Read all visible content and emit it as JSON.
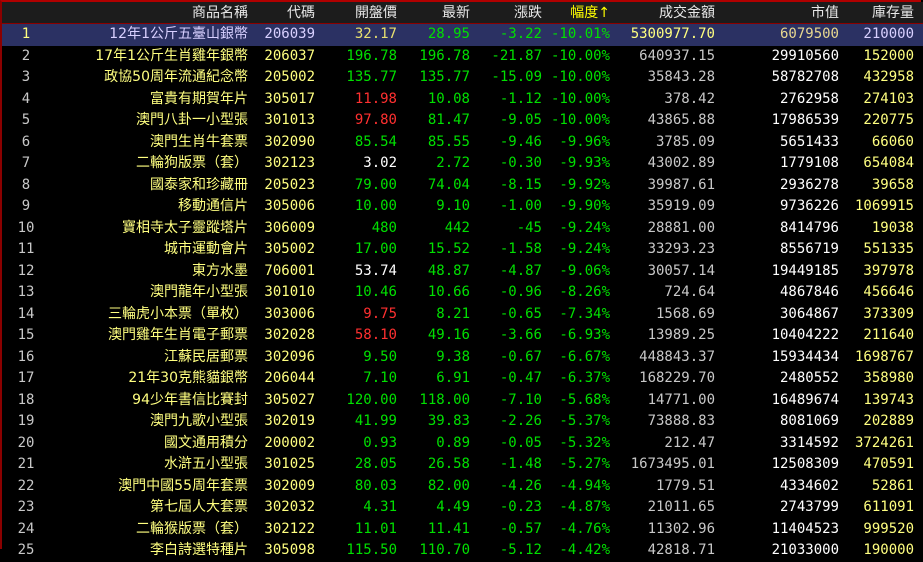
{
  "header": {
    "name": "商品名稱",
    "code": "代碼",
    "open": "開盤價",
    "last": "最新",
    "chg": "漲跌",
    "pct": "幅度",
    "sort_arrow": "↑",
    "amt": "成交金額",
    "cap": "市值",
    "stk": "庫存量"
  },
  "selected_row": 1,
  "colors": {
    "up": "#ff3030",
    "down": "#00e000",
    "flat": "#ffffff",
    "name": "#ffff80",
    "selected_bg": "#2b3163"
  },
  "rows": [
    {
      "n": "1",
      "name": "12年1公斤五臺山銀幣",
      "code": "206039",
      "open": "32.17",
      "oc": "g",
      "last": "28.95",
      "chg": "-3.22",
      "pct": "-10.01%",
      "amt": "5300977.70",
      "cap": "6079500",
      "stk": "210000"
    },
    {
      "n": "2",
      "name": "17年1公斤生肖雞年銀幣",
      "code": "206037",
      "open": "196.78",
      "oc": "g",
      "last": "196.78",
      "chg": "-21.87",
      "pct": "-10.00%",
      "amt": "640937.15",
      "cap": "29910560",
      "stk": "152000"
    },
    {
      "n": "3",
      "name": "政協50周年流通紀念幣",
      "code": "205002",
      "open": "135.77",
      "oc": "g",
      "last": "135.77",
      "chg": "-15.09",
      "pct": "-10.00%",
      "amt": "35843.28",
      "cap": "58782708",
      "stk": "432958"
    },
    {
      "n": "4",
      "name": "富貴有期賀年片",
      "code": "305017",
      "open": "11.98",
      "oc": "r",
      "last": "10.08",
      "chg": "-1.12",
      "pct": "-10.00%",
      "amt": "378.42",
      "cap": "2762958",
      "stk": "274103"
    },
    {
      "n": "5",
      "name": "澳門八卦一小型張",
      "code": "301013",
      "open": "97.80",
      "oc": "r",
      "last": "81.47",
      "chg": "-9.05",
      "pct": "-10.00%",
      "amt": "43865.88",
      "cap": "17986539",
      "stk": "220775"
    },
    {
      "n": "6",
      "name": "澳門生肖牛套票",
      "code": "302090",
      "open": "85.54",
      "oc": "g",
      "last": "85.55",
      "chg": "-9.46",
      "pct": "-9.96%",
      "amt": "3785.09",
      "cap": "5651433",
      "stk": "66060"
    },
    {
      "n": "7",
      "name": "二輪狗版票（套）",
      "code": "302123",
      "open": "3.02",
      "oc": "w",
      "last": "2.72",
      "chg": "-0.30",
      "pct": "-9.93%",
      "amt": "43002.89",
      "cap": "1779108",
      "stk": "654084"
    },
    {
      "n": "8",
      "name": "國泰家和珍藏冊",
      "code": "205023",
      "open": "79.00",
      "oc": "g",
      "last": "74.04",
      "chg": "-8.15",
      "pct": "-9.92%",
      "amt": "39987.61",
      "cap": "2936278",
      "stk": "39658"
    },
    {
      "n": "9",
      "name": "移動通信片",
      "code": "305006",
      "open": "10.00",
      "oc": "g",
      "last": "9.10",
      "chg": "-1.00",
      "pct": "-9.90%",
      "amt": "35919.09",
      "cap": "9736226",
      "stk": "1069915"
    },
    {
      "n": "10",
      "name": "寶相寺太子靈蹤塔片",
      "code": "306009",
      "open": "480",
      "oc": "g",
      "last": "442",
      "chg": "-45",
      "pct": "-9.24%",
      "amt": "28881.00",
      "cap": "8414796",
      "stk": "19038"
    },
    {
      "n": "11",
      "name": "城市運動會片",
      "code": "305002",
      "open": "17.00",
      "oc": "g",
      "last": "15.52",
      "chg": "-1.58",
      "pct": "-9.24%",
      "amt": "33293.23",
      "cap": "8556719",
      "stk": "551335"
    },
    {
      "n": "12",
      "name": "東方水墨",
      "code": "706001",
      "open": "53.74",
      "oc": "w",
      "last": "48.87",
      "chg": "-4.87",
      "pct": "-9.06%",
      "amt": "30057.14",
      "cap": "19449185",
      "stk": "397978"
    },
    {
      "n": "13",
      "name": "澳門龍年小型張",
      "code": "301010",
      "open": "10.46",
      "oc": "g",
      "last": "10.66",
      "chg": "-0.96",
      "pct": "-8.26%",
      "amt": "724.64",
      "cap": "4867846",
      "stk": "456646"
    },
    {
      "n": "14",
      "name": "三輪虎小本票（單枚）",
      "code": "303006",
      "open": "9.75",
      "oc": "r",
      "last": "8.21",
      "chg": "-0.65",
      "pct": "-7.34%",
      "amt": "1568.69",
      "cap": "3064867",
      "stk": "373309"
    },
    {
      "n": "15",
      "name": "澳門雞年生肖電子郵票",
      "code": "302028",
      "open": "58.10",
      "oc": "r",
      "last": "49.16",
      "chg": "-3.66",
      "pct": "-6.93%",
      "amt": "13989.25",
      "cap": "10404222",
      "stk": "211640"
    },
    {
      "n": "16",
      "name": "江蘇民居郵票",
      "code": "302096",
      "open": "9.50",
      "oc": "g",
      "last": "9.38",
      "chg": "-0.67",
      "pct": "-6.67%",
      "amt": "448843.37",
      "cap": "15934434",
      "stk": "1698767"
    },
    {
      "n": "17",
      "name": "21年30克熊貓銀幣",
      "code": "206044",
      "open": "7.10",
      "oc": "g",
      "last": "6.91",
      "chg": "-0.47",
      "pct": "-6.37%",
      "amt": "168229.70",
      "cap": "2480552",
      "stk": "358980"
    },
    {
      "n": "18",
      "name": "94少年書信比賽封",
      "code": "305027",
      "open": "120.00",
      "oc": "g",
      "last": "118.00",
      "chg": "-7.10",
      "pct": "-5.68%",
      "amt": "14771.00",
      "cap": "16489674",
      "stk": "139743"
    },
    {
      "n": "19",
      "name": "澳門九歌小型張",
      "code": "302019",
      "open": "41.99",
      "oc": "g",
      "last": "39.83",
      "chg": "-2.26",
      "pct": "-5.37%",
      "amt": "73888.83",
      "cap": "8081069",
      "stk": "202889"
    },
    {
      "n": "20",
      "name": "國文通用積分",
      "code": "200002",
      "open": "0.93",
      "oc": "g",
      "last": "0.89",
      "chg": "-0.05",
      "pct": "-5.32%",
      "amt": "212.47",
      "cap": "3314592",
      "stk": "3724261"
    },
    {
      "n": "21",
      "name": "水滸五小型張",
      "code": "301025",
      "open": "28.05",
      "oc": "g",
      "last": "26.58",
      "chg": "-1.48",
      "pct": "-5.27%",
      "amt": "1673495.01",
      "cap": "12508309",
      "stk": "470591"
    },
    {
      "n": "22",
      "name": "澳門中國55周年套票",
      "code": "302009",
      "open": "80.03",
      "oc": "g",
      "last": "82.00",
      "chg": "-4.26",
      "pct": "-4.94%",
      "amt": "1779.51",
      "cap": "4334602",
      "stk": "52861"
    },
    {
      "n": "23",
      "name": "第七屆人大套票",
      "code": "302032",
      "open": "4.31",
      "oc": "g",
      "last": "4.49",
      "chg": "-0.23",
      "pct": "-4.87%",
      "amt": "21011.65",
      "cap": "2743799",
      "stk": "611091"
    },
    {
      "n": "24",
      "name": "二輪猴版票（套）",
      "code": "302122",
      "open": "11.01",
      "oc": "g",
      "last": "11.41",
      "chg": "-0.57",
      "pct": "-4.76%",
      "amt": "11302.96",
      "cap": "11404523",
      "stk": "999520"
    },
    {
      "n": "25",
      "name": "李白詩選特種片",
      "code": "305098",
      "open": "115.50",
      "oc": "g",
      "last": "110.70",
      "chg": "-5.12",
      "pct": "-4.42%",
      "amt": "42818.71",
      "cap": "21033000",
      "stk": "190000"
    }
  ]
}
